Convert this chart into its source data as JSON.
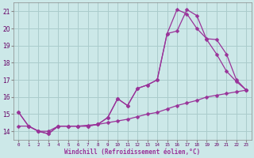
{
  "xlabel": "Windchill (Refroidissement éolien,°C)",
  "background_color": "#cce8e8",
  "grid_color": "#aacccc",
  "line_color": "#993399",
  "xlim": [
    -0.5,
    23.5
  ],
  "ylim": [
    13.5,
    21.5
  ],
  "xticks": [
    0,
    1,
    2,
    3,
    4,
    5,
    6,
    7,
    8,
    9,
    10,
    11,
    12,
    13,
    14,
    15,
    16,
    17,
    18,
    19,
    20,
    21,
    22,
    23
  ],
  "yticks": [
    14,
    15,
    16,
    17,
    18,
    19,
    20,
    21
  ],
  "line1_x": [
    0,
    1,
    2,
    3,
    4,
    5,
    6,
    7,
    8,
    9,
    10,
    11,
    12,
    13,
    14,
    15,
    16,
    17,
    18,
    19,
    20,
    21,
    22,
    23
  ],
  "line1_y": [
    15.1,
    14.3,
    14.0,
    13.85,
    14.3,
    14.3,
    14.3,
    14.3,
    14.4,
    14.8,
    15.9,
    15.5,
    16.5,
    16.7,
    17.0,
    19.7,
    19.85,
    21.1,
    20.75,
    19.35,
    18.5,
    17.5,
    16.9,
    16.4
  ],
  "line2_x": [
    0,
    1,
    2,
    3,
    4,
    5,
    6,
    7,
    8,
    9,
    10,
    11,
    12,
    13,
    14,
    15,
    16,
    17,
    18,
    19,
    20,
    21,
    22,
    23
  ],
  "line2_y": [
    15.1,
    14.3,
    14.0,
    13.85,
    14.3,
    14.3,
    14.3,
    14.3,
    14.4,
    14.8,
    15.9,
    15.5,
    16.5,
    16.7,
    17.0,
    19.7,
    21.1,
    20.85,
    20.0,
    19.4,
    19.35,
    18.5,
    17.0,
    16.4
  ],
  "line3_x": [
    0,
    1,
    2,
    3,
    4,
    5,
    6,
    7,
    8,
    9,
    10,
    11,
    12,
    13,
    14,
    15,
    16,
    17,
    18,
    19,
    20,
    21,
    22,
    23
  ],
  "line3_y": [
    14.3,
    14.3,
    14.0,
    14.0,
    14.3,
    14.3,
    14.3,
    14.35,
    14.4,
    14.5,
    14.6,
    14.7,
    14.85,
    15.0,
    15.1,
    15.3,
    15.5,
    15.65,
    15.8,
    16.0,
    16.1,
    16.2,
    16.3,
    16.4
  ]
}
